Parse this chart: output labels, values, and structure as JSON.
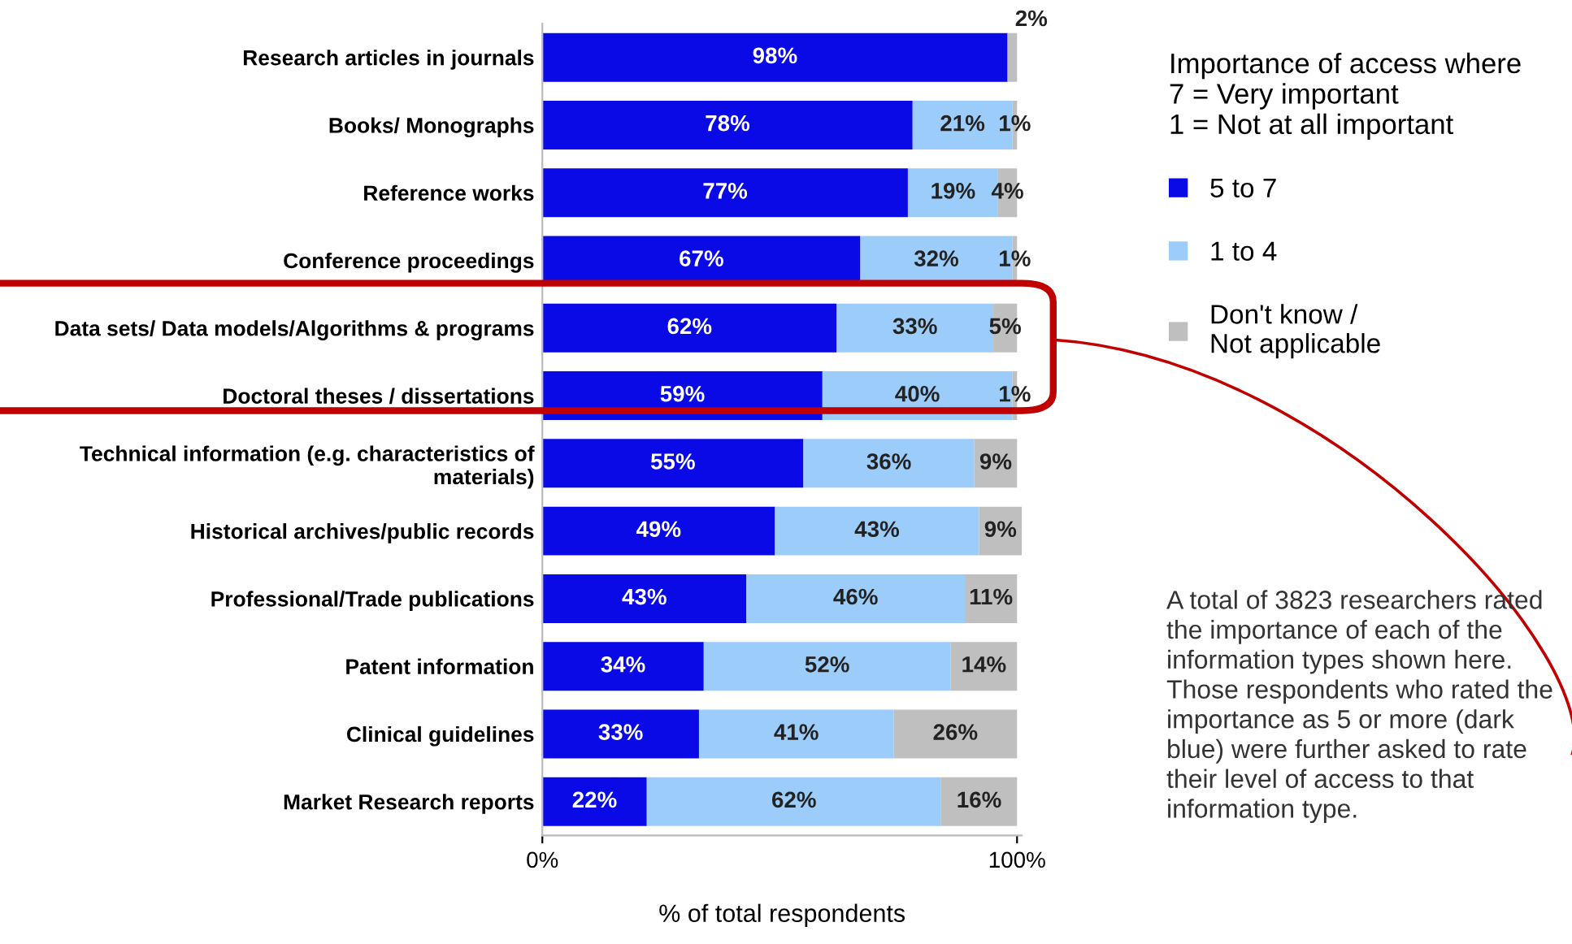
{
  "chart_data": {
    "type": "bar",
    "orientation": "horizontal",
    "stacked": true,
    "categories": [
      "Research articles in journals",
      "Books/ Monographs",
      "Reference works",
      "Conference proceedings",
      "Data sets/ Data models/Algorithms & programs",
      "Doctoral theses / dissertations",
      "Technical information (e.g. characteristics of\nmaterials)",
      "Historical archives/public records",
      "Professional/Trade publications",
      "Patent information",
      "Clinical guidelines",
      "Market Research reports"
    ],
    "series": [
      {
        "name": "5 to 7",
        "color": "#0a0ae6",
        "values": [
          98,
          78,
          77,
          67,
          62,
          59,
          55,
          49,
          43,
          34,
          33,
          22
        ],
        "value_labels": [
          "98%",
          "78%",
          "77%",
          "67%",
          "62%",
          "59%",
          "55%",
          "49%",
          "43%",
          "34%",
          "33%",
          "22%"
        ]
      },
      {
        "name": "1 to 4",
        "color": "#9ccdfa",
        "values": [
          null,
          21,
          19,
          32,
          33,
          40,
          36,
          43,
          46,
          52,
          41,
          62
        ],
        "value_labels": [
          null,
          "21%",
          "19%",
          "32%",
          "33%",
          "40%",
          "36%",
          "43%",
          "46%",
          "52%",
          "41%",
          "62%"
        ]
      },
      {
        "name": "Don't know /\nNot applicable",
        "color": "#bfbfbf",
        "values": [
          2,
          1,
          4,
          1,
          5,
          1,
          9,
          9,
          11,
          14,
          26,
          16
        ],
        "value_labels": [
          "2%",
          "1%",
          "4%",
          "1%",
          "5%",
          "1%",
          "9%",
          "9%",
          "11%",
          "14%",
          "26%",
          "16%"
        ]
      }
    ],
    "xlim": [
      0,
      101
    ],
    "xticks": [
      {
        "value": 0,
        "label": "0%"
      },
      {
        "value": 100,
        "label": "100%"
      }
    ],
    "xlabel": "% of total respondents",
    "legend_title": "Importance of access where\n7 = Very important\n1 = Not at all important",
    "legend": "right",
    "grid": false,
    "annotations": [
      "A total of 3823 researchers rated the importance of each of the information types shown here. Those respondents who rated the importance as 5 or more (dark blue) were further asked to rate their level of access to that information type."
    ]
  }
}
